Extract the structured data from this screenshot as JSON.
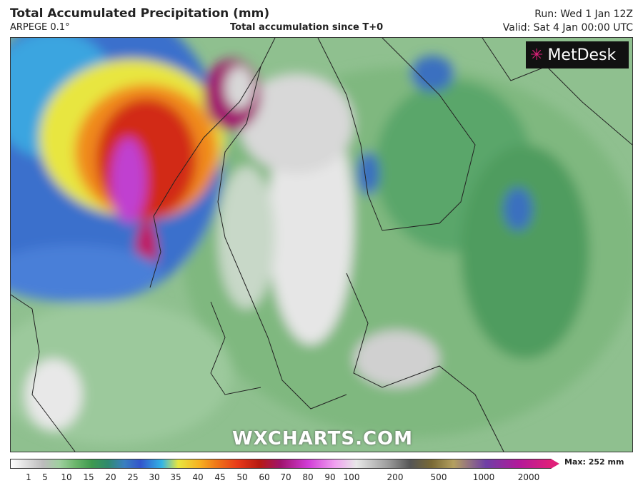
{
  "header": {
    "title": "Total Accumulated Precipitation (mm)",
    "model": "ARPEGE 0.1°",
    "subtitle": "Total accumulation since T+0",
    "run": "Run: Wed 1 Jan 12Z",
    "valid": "Valid: Sat 4 Jan 00:00 UTC"
  },
  "logo": "MetDesk",
  "watermark": "WXCHARTS.COM",
  "legend": {
    "ticks": [
      1,
      5,
      10,
      15,
      20,
      25,
      30,
      35,
      40,
      45,
      50,
      60,
      70,
      80,
      90,
      100,
      200,
      500,
      1000,
      2000
    ],
    "max": "Max: 252 mm"
  }
}
